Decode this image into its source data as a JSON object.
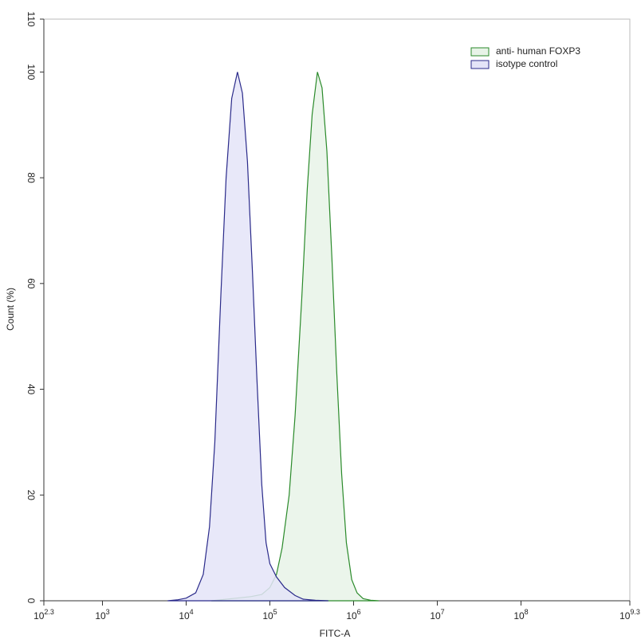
{
  "chart_data": {
    "type": "histogram-overlay",
    "x_label": "FITC-A",
    "y_label": "Count (%)",
    "xscale": "log",
    "xlim": [
      199.526,
      1995262315
    ],
    "xticks": [
      {
        "value": 199.526,
        "label": "10",
        "sup": "2.3"
      },
      {
        "value": 1000,
        "label": "10",
        "sup": "3"
      },
      {
        "value": 10000,
        "label": "10",
        "sup": "4"
      },
      {
        "value": 100000,
        "label": "10",
        "sup": "5"
      },
      {
        "value": 1000000,
        "label": "10",
        "sup": "6"
      },
      {
        "value": 10000000,
        "label": "10",
        "sup": "7"
      },
      {
        "value": 100000000,
        "label": "10",
        "sup": "8"
      },
      {
        "value": 1995262315,
        "label": "10",
        "sup": "9.3"
      }
    ],
    "ylim": [
      0,
      110
    ],
    "yticks": [
      0,
      20,
      40,
      60,
      80,
      100,
      110
    ],
    "legend": "top-right",
    "series": [
      {
        "name": "anti- human FOXP3",
        "color": "#2a8a2a",
        "fill_color": "#e7f3e7",
        "x": [
          20000,
          40000,
          60000,
          80000,
          100000,
          120000,
          140000,
          170000,
          200000,
          240000,
          280000,
          320000,
          370000,
          420000,
          480000,
          550000,
          630000,
          720000,
          820000,
          950000,
          1100000,
          1300000,
          1600000,
          2000000
        ],
        "values": [
          0,
          0.5,
          0.8,
          1.2,
          2.5,
          5,
          10,
          20,
          35,
          57,
          78,
          92,
          100,
          97,
          85,
          65,
          43,
          24,
          11,
          4,
          1.5,
          0.4,
          0.1,
          0
        ]
      },
      {
        "name": "isotype control",
        "color": "#2a2a8a",
        "fill_color": "#e4e4f8",
        "x": [
          6000,
          8000,
          10000,
          13000,
          16000,
          19000,
          22000,
          26000,
          30000,
          35000,
          41000,
          47000,
          54000,
          62000,
          70000,
          80000,
          90000,
          100000,
          120000,
          150000,
          200000,
          250000,
          350000,
          500000
        ],
        "values": [
          0,
          0.2,
          0.5,
          1.5,
          5,
          14,
          30,
          58,
          80,
          95,
          100,
          96,
          83,
          62,
          42,
          22,
          11,
          7,
          4.5,
          2.5,
          1,
          0.3,
          0.1,
          0
        ]
      }
    ]
  }
}
